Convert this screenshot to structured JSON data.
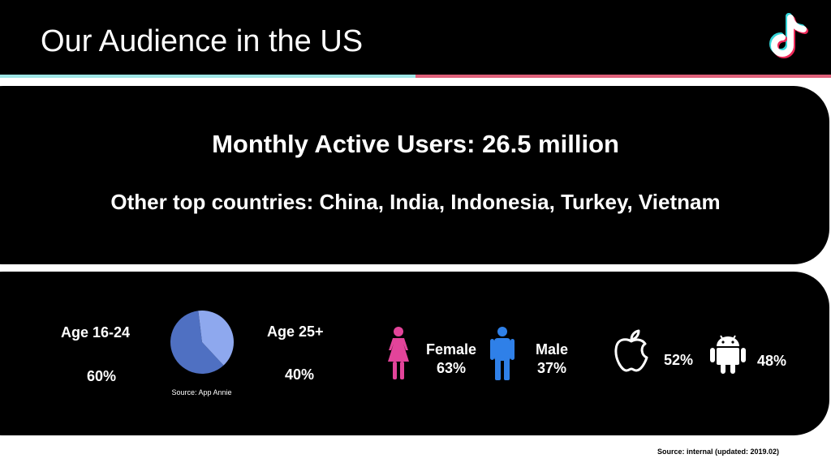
{
  "header": {
    "title": "Our Audience in the US",
    "logo_icon": "tiktok-logo-icon",
    "stripe_colors": [
      "#9ee6e6",
      "#e0607a"
    ]
  },
  "summary": {
    "monthly_active_users": "Monthly Active Users: 26.5 million",
    "other_countries": "Other top countries: China, India, Indonesia, Turkey, Vietnam"
  },
  "demographics": {
    "age_group_1": {
      "label": "Age 16-24",
      "value": "60%"
    },
    "age_group_2": {
      "label": "Age 25+",
      "value": "40%"
    },
    "age_source": "Source: App Annie",
    "female": {
      "label": "Female",
      "value": "63%",
      "icon": "female-figure-icon",
      "color": "#e3449a"
    },
    "male": {
      "label": "Male",
      "value": "37%",
      "icon": "male-figure-icon",
      "color": "#2f80e8"
    },
    "ios": {
      "value": "52%",
      "icon": "apple-icon"
    },
    "android": {
      "value": "48%",
      "icon": "android-icon"
    }
  },
  "chart_data": {
    "type": "pie",
    "categories": [
      "Age 16-24",
      "Age 25+"
    ],
    "values": [
      60,
      40
    ],
    "colors": [
      "#4f70c2",
      "#8ea8ee"
    ]
  },
  "footer": {
    "source": "Source: internal  (updated: 2019.02)"
  }
}
